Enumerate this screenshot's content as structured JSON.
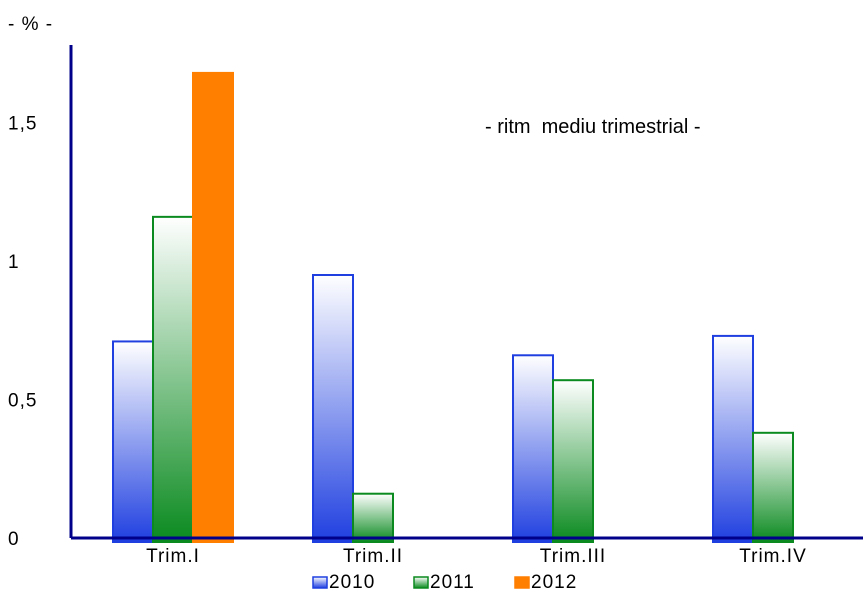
{
  "chart_data": {
    "type": "bar",
    "unit_label": "- % -",
    "annotation": "- ritm  mediu trimestrial -",
    "categories": [
      "Trim.I",
      "Trim.II",
      "Trim.III",
      "Trim.IV"
    ],
    "series": [
      {
        "name": "2010",
        "values": [
          0.71,
          0.95,
          0.66,
          0.73
        ],
        "color": "#1f3fe0"
      },
      {
        "name": "2011",
        "values": [
          1.16,
          0.16,
          0.57,
          0.38
        ],
        "color": "#0a8a1f"
      },
      {
        "name": "2012",
        "values": [
          1.68,
          null,
          null,
          null
        ],
        "color": "#ff7f00"
      }
    ],
    "ylim": [
      0,
      1.9
    ],
    "yticks": [
      {
        "value": 0,
        "label": "0"
      },
      {
        "value": 0.5,
        "label": "0,5"
      },
      {
        "value": 1,
        "label": "1"
      },
      {
        "value": 1.5,
        "label": "1,5"
      }
    ],
    "grid": false,
    "legend_position": "bottom"
  }
}
